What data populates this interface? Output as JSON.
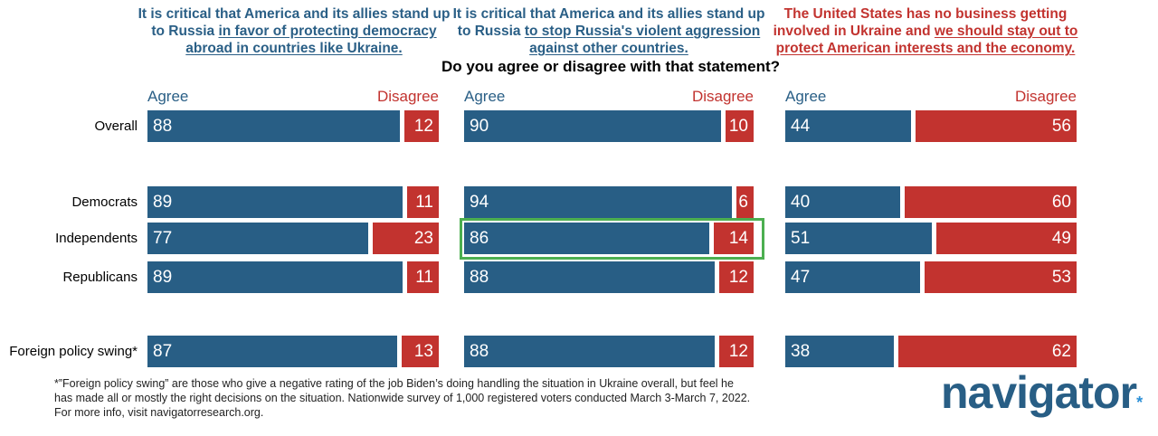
{
  "chart_data": {
    "type": "bar",
    "question": "Do you agree or disagree with that statement?",
    "panels": [
      {
        "title_plain": "It is critical that America and its allies stand up to Russia ",
        "title_underlined": "in favor of protecting democracy abroad in countries like Ukraine.",
        "color": "#2a5f86",
        "agree_label": "Agree",
        "disagree_label": "Disagree",
        "agree": [
          88,
          89,
          77,
          89,
          87
        ],
        "disagree": [
          12,
          11,
          23,
          11,
          13
        ]
      },
      {
        "title_plain": "It is critical that America and its allies stand up to Russia ",
        "title_underlined": "to stop Russia's violent aggression against other countries.",
        "color": "#2a5f86",
        "agree_label": "Agree",
        "disagree_label": "Disagree",
        "agree": [
          90,
          94,
          86,
          88,
          88
        ],
        "disagree": [
          10,
          6,
          14,
          12,
          12
        ]
      },
      {
        "title_plain": "The United States has no business getting involved in Ukraine and ",
        "title_underlined": "we should stay out to protect American interests and the economy.",
        "color": "#c2332f",
        "agree_label": "Agree",
        "disagree_label": "Disagree",
        "agree": [
          44,
          40,
          51,
          47,
          38
        ],
        "disagree": [
          56,
          60,
          49,
          53,
          62
        ]
      }
    ],
    "categories": [
      "Overall",
      "Democrats",
      "Independents",
      "Republicans",
      "Foreign policy swing*"
    ],
    "highlight": {
      "panel": 1,
      "category": "Independents"
    },
    "colors": {
      "agree": "#285e85",
      "disagree": "#c2332f",
      "highlight": "#4caf50"
    }
  },
  "footnote": [
    "*”Foreign policy swing” are those who give a negative rating of the job Biden’s doing handling the situation in Ukraine overall, but feel he",
    "has made all or mostly the right decisions on the situation. Nationwide survey of 1,000 registered voters conducted March 3-March 7, 2022.",
    "For more info, visit navigatorresearch.org."
  ],
  "logo": {
    "text": "navigator",
    "mark": "*"
  }
}
